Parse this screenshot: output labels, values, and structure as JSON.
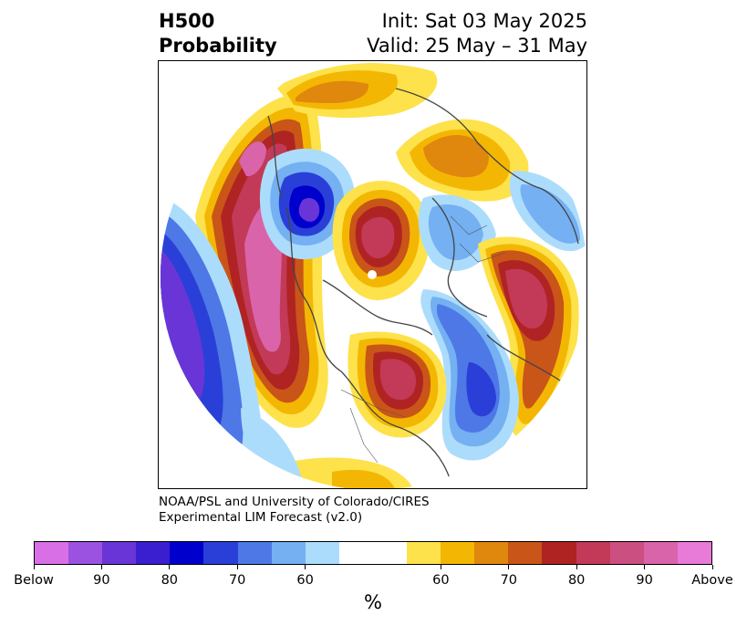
{
  "header": {
    "title_line1": "H500",
    "title_line2": "Probability",
    "init": "Init: Sat 03 May 2025",
    "valid": "Valid: 25 May – 31 May"
  },
  "credit": {
    "line1": "NOAA/PSL and University of Colorado/CIRES",
    "line2": "Experimental LIM Forecast (v2.0)"
  },
  "colorbar": {
    "colors": [
      "#d96fe6",
      "#9c52e0",
      "#6a35d6",
      "#3a1fd0",
      "#0000cc",
      "#2a3fd8",
      "#4d78e6",
      "#74b0f2",
      "#acdcfb",
      "#ffffff",
      "#ffffff",
      "#fde24b",
      "#f3b703",
      "#e0870e",
      "#c95518",
      "#b02323",
      "#c23a58",
      "#cc4f82",
      "#d964aa",
      "#e87ad8"
    ],
    "tick_labels": [
      "Below",
      "90",
      "80",
      "70",
      "60",
      "60",
      "70",
      "80",
      "90",
      "Above"
    ],
    "unit": "%"
  }
}
